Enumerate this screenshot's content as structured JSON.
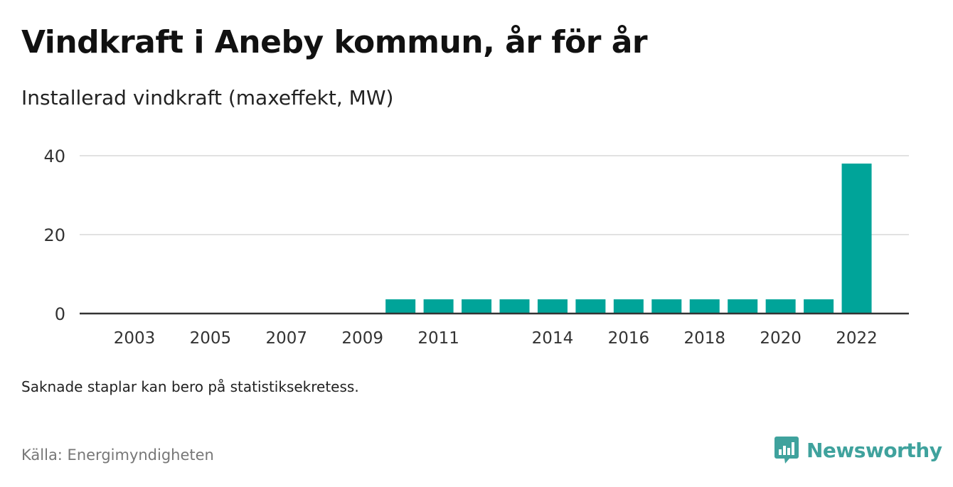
{
  "title": "Vindkraft i Aneby kommun, år för år",
  "subtitle": "Installerad vindkraft (maxeffekt, MW)",
  "note": "Saknade staplar kan bero på statistiksekretess.",
  "source": "Källa: Energimyndigheten",
  "brand": {
    "name": "Newsworthy",
    "icon": "newsworthy-logo-icon",
    "color": "#3fa29d"
  },
  "chart_data": {
    "type": "bar",
    "categories": [
      "2003",
      "2004",
      "2005",
      "2006",
      "2007",
      "2008",
      "2009",
      "2010",
      "2011",
      "2012",
      "2013",
      "2014",
      "2015",
      "2016",
      "2017",
      "2018",
      "2019",
      "2020",
      "2021",
      "2022"
    ],
    "values": [
      0,
      0,
      0,
      0,
      0,
      0,
      0,
      3.6,
      3.6,
      3.6,
      3.6,
      3.6,
      3.6,
      3.6,
      3.6,
      3.6,
      3.6,
      3.6,
      3.6,
      38
    ],
    "x_tick_labels": [
      "2003",
      "2005",
      "2007",
      "2009",
      "2011",
      "2014",
      "2016",
      "2018",
      "2020",
      "2022"
    ],
    "y_ticks": [
      0,
      20,
      40
    ],
    "ylim": [
      0,
      40
    ],
    "bar_color": "#00a499",
    "grid": true,
    "title": "Vindkraft i Aneby kommun, år för år",
    "xlabel": "",
    "ylabel": ""
  }
}
